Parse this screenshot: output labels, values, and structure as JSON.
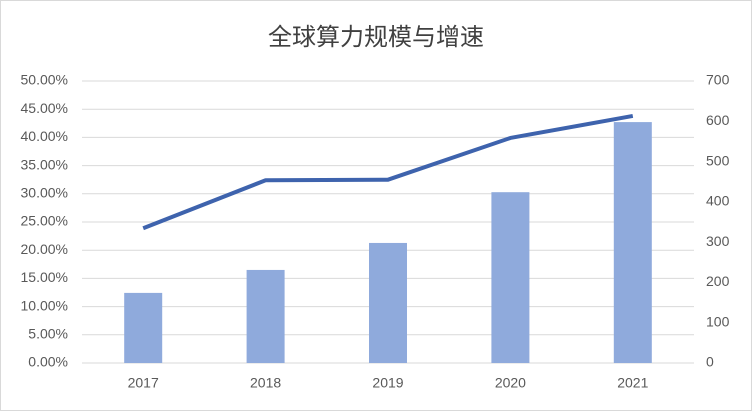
{
  "chart_data": {
    "type": "bar",
    "title": "全球算力规模与增速",
    "categories": [
      "2017",
      "2018",
      "2019",
      "2020",
      "2021"
    ],
    "series": [
      {
        "type": "bar",
        "color": "#8faadc",
        "axis": "y2",
        "values": [
          174,
          231,
          298,
          424,
          598
        ]
      },
      {
        "type": "line",
        "color": "#3e63ad",
        "values": [
          23.9,
          32.4,
          32.5,
          39.9,
          43.8
        ]
      }
    ],
    "ylim": [
      0,
      50
    ],
    "yticks": [
      {
        "value": 0,
        "label": "0.00%"
      },
      {
        "value": 5,
        "label": "5.00%"
      },
      {
        "value": 10,
        "label": "10.00%"
      },
      {
        "value": 15,
        "label": "15.00%"
      },
      {
        "value": 20,
        "label": "20.00%"
      },
      {
        "value": 25,
        "label": "25.00%"
      },
      {
        "value": 30,
        "label": "30.00%"
      },
      {
        "value": 35,
        "label": "35.00%"
      },
      {
        "value": 40,
        "label": "40.00%"
      },
      {
        "value": 45,
        "label": "45.00%"
      },
      {
        "value": 50,
        "label": "50.00%"
      }
    ],
    "y2lim": [
      0,
      700
    ],
    "y2ticks": [
      0,
      100,
      200,
      300,
      400,
      500,
      600,
      700
    ],
    "grid": true
  }
}
